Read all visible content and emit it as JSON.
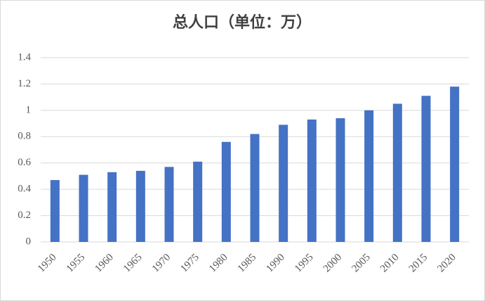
{
  "chart_data": {
    "type": "bar",
    "title": "总人口（单位：万）",
    "categories": [
      "1950",
      "1955",
      "1960",
      "1965",
      "1970",
      "1975",
      "1980",
      "1985",
      "1990",
      "1995",
      "2000",
      "2005",
      "2010",
      "2015",
      "2020"
    ],
    "values": [
      0.47,
      0.51,
      0.53,
      0.54,
      0.57,
      0.61,
      0.76,
      0.82,
      0.89,
      0.93,
      0.94,
      1.0,
      1.05,
      1.11,
      1.18
    ],
    "color": "#4472c4",
    "ylim": [
      0,
      1.4
    ],
    "yticks": [
      0,
      0.2,
      0.4,
      0.6,
      0.8,
      1,
      1.2,
      1.4
    ],
    "grid": true
  }
}
